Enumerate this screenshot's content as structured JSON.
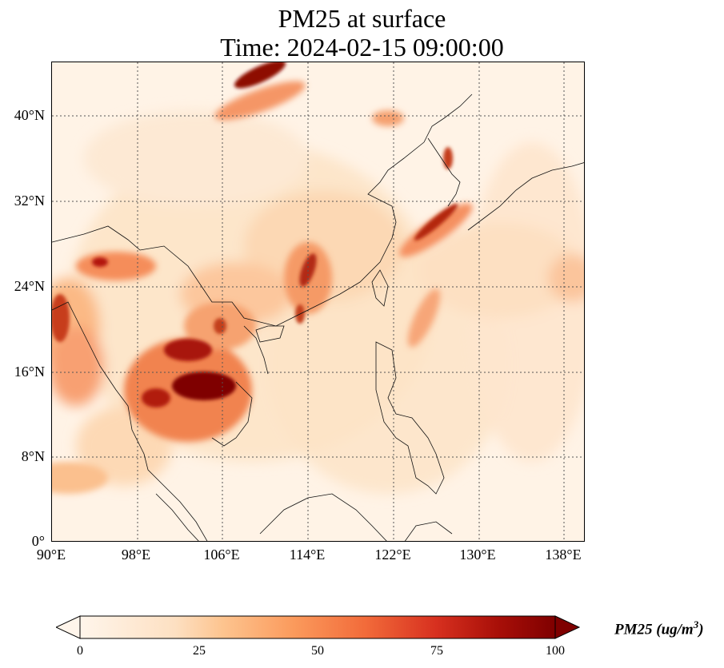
{
  "title": {
    "line1": "PM25 at surface",
    "line2": "Time: 2024-02-15 09:00:00"
  },
  "map": {
    "lon_range": [
      90,
      140
    ],
    "lat_range": [
      0,
      45
    ],
    "lon_ticks": [
      "90°E",
      "98°E",
      "106°E",
      "114°E",
      "122°E",
      "130°E",
      "138°E"
    ],
    "lat_ticks": [
      "0°",
      "8°N",
      "16°N",
      "24°N",
      "32°N",
      "40°N"
    ],
    "gridlines": "dotted",
    "colormap": [
      "#fff5eb",
      "#fdd9b4",
      "#fdab6f",
      "#f16913",
      "#c73e1d",
      "#7f0000"
    ]
  },
  "colorbar": {
    "ticks": [
      "0",
      "25",
      "50",
      "75",
      "100"
    ],
    "label_main": "PM25 (ug/m",
    "label_sup": "3",
    "label_close": ")",
    "extend": "both"
  }
}
